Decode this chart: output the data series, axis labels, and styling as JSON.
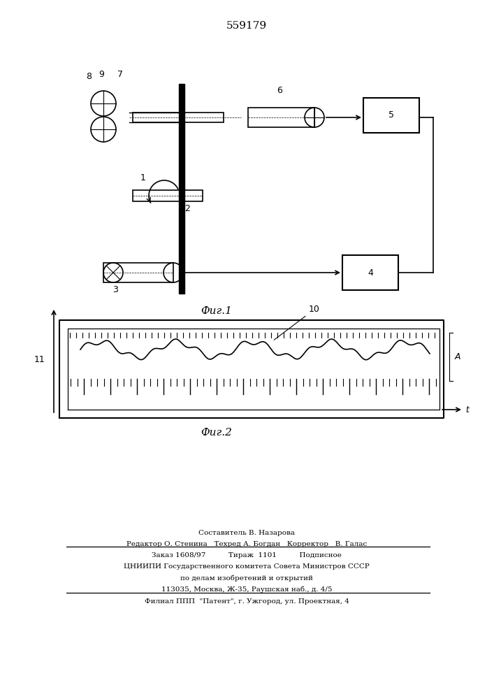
{
  "patent_number": "559179",
  "fig1_caption": "Фиг.1",
  "fig2_caption": "Фиг.2",
  "bg_color": "#ffffff",
  "line_color": "#000000",
  "footer_lines": [
    "Составитель В. Назарова",
    "Редактор О. Стенина   Техред А. Богдан   Корректор   В. Галас",
    "Заказ 1608/97          Тираж  1101          Подписное",
    "ЦНИИПИ Государственного комитета Совета Министров СССР",
    "по делам изобретений и открытий",
    "113035, Москва, Ж-35, Раушская наб., д. 4/5",
    "Филиал ППП  \"Патент\", г. Ужгород, ул. Проектная, 4"
  ]
}
